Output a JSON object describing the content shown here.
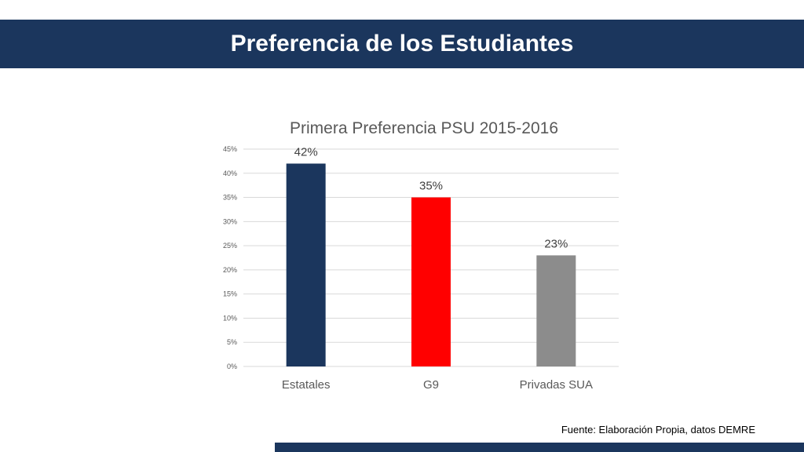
{
  "slide": {
    "title": "Preferencia de los Estudiantes",
    "source": "Fuente: Elaboración Propia, datos DEMRE",
    "accent_color": "#1b365d"
  },
  "chart_data": {
    "type": "bar",
    "title": "Primera Preferencia PSU 2015-2016",
    "xlabel": "",
    "ylabel": "",
    "categories": [
      "Estatales",
      "G9",
      "Privadas SUA"
    ],
    "values": [
      42,
      35,
      23
    ],
    "data_labels": [
      "42%",
      "35%",
      "23%"
    ],
    "colors": [
      "#1b365d",
      "#ff0000",
      "#8c8c8c"
    ],
    "ylim": [
      0,
      45
    ],
    "yticks": [
      0,
      5,
      10,
      15,
      20,
      25,
      30,
      35,
      40,
      45
    ],
    "ytick_labels": [
      "0%",
      "5%",
      "10%",
      "15%",
      "20%",
      "25%",
      "30%",
      "35%",
      "40%",
      "45%"
    ],
    "grid": true,
    "legend": "none"
  }
}
